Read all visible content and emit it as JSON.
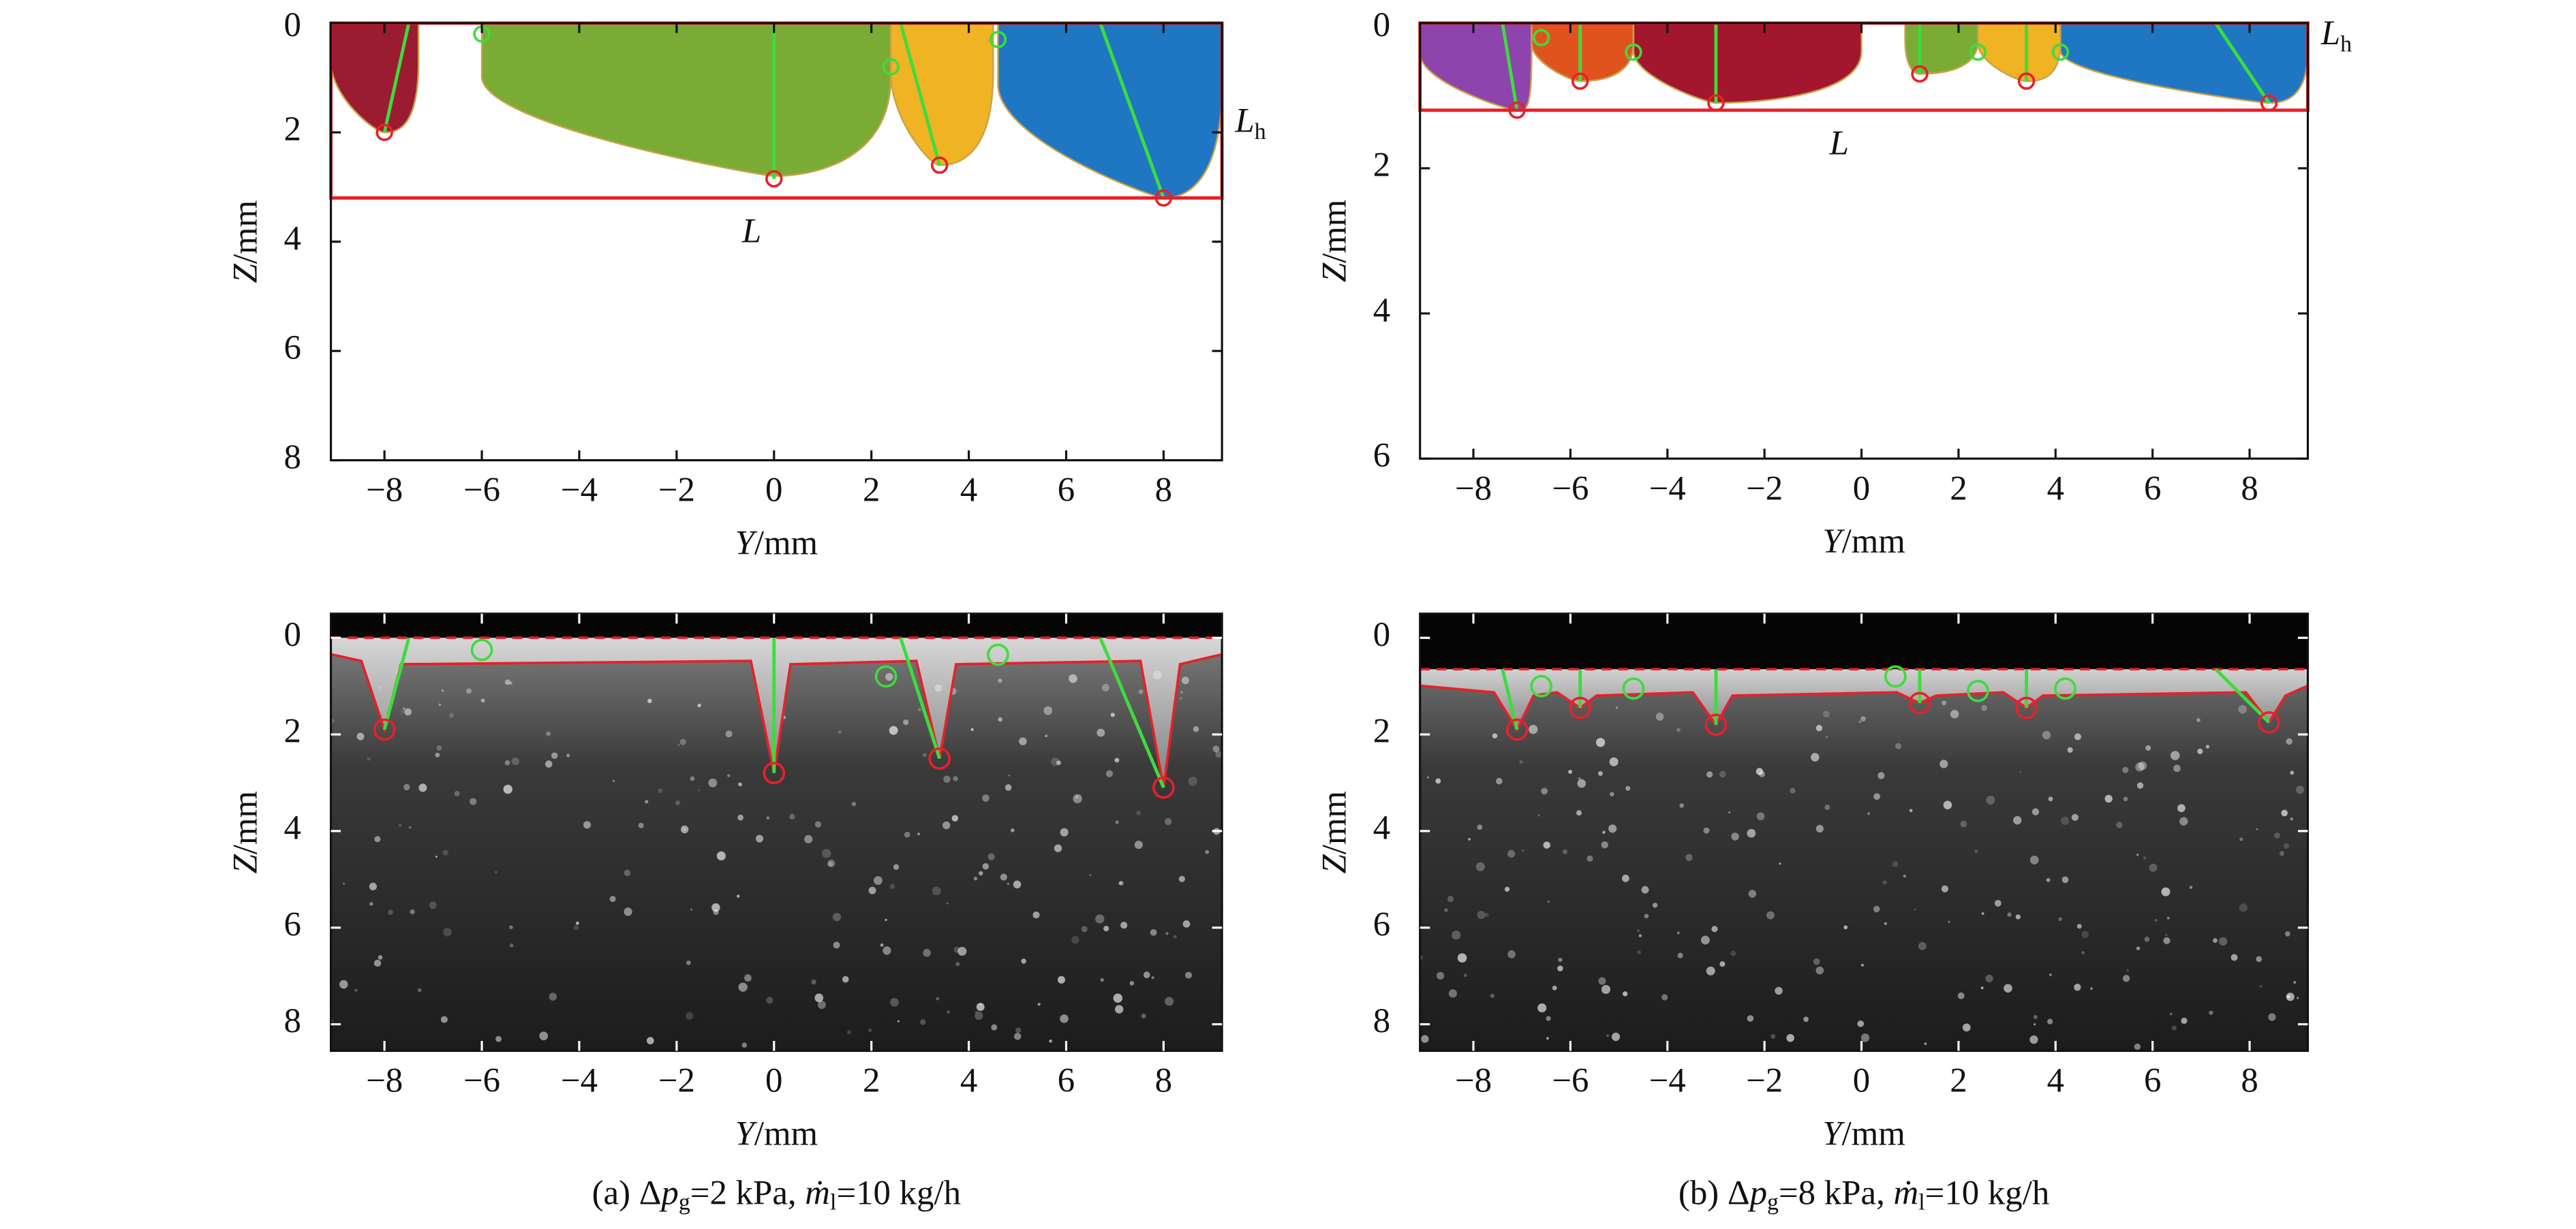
{
  "chart_data": [
    {
      "type": "segmentation",
      "x_label": {
        "symbol": "Y",
        "unit": "/mm"
      },
      "y_label": {
        "symbol": "Z",
        "unit": "/mm"
      },
      "xlim": [
        -9.1,
        9.2
      ],
      "ylim": [
        0,
        8
      ],
      "xticks": [
        {
          "value": -8,
          "label": "−8"
        },
        {
          "value": -6,
          "label": "−6"
        },
        {
          "value": -4,
          "label": "−4"
        },
        {
          "value": -2,
          "label": "−2"
        },
        0,
        2,
        4,
        6,
        8
      ],
      "yticks": [
        0,
        2,
        4,
        6,
        8
      ],
      "regions": [
        {
          "color": "#9b1b30",
          "from": -9.1,
          "to": -7.3,
          "depth": 2.0
        },
        {
          "color": "#7aab35",
          "from": -6.0,
          "to": 2.4,
          "depth": 2.8
        },
        {
          "color": "#f0b323",
          "from": 2.4,
          "to": 4.5,
          "depth": 2.6
        },
        {
          "color": "#1f77c4",
          "from": 4.6,
          "to": 9.2,
          "depth": 3.2
        }
      ],
      "box": {
        "color": "#e8202a",
        "height": 3.2
      },
      "annotations": {
        "L": "L",
        "Lh": {
          "symbol": "L",
          "sub": "h"
        }
      },
      "tips": {
        "Y": [
          -8,
          0,
          3.4,
          8
        ],
        "Z": [
          2.0,
          2.85,
          2.6,
          3.2
        ]
      },
      "line_tops": [
        -7.5,
        0,
        2.6,
        6.7
      ],
      "markers": {
        "Y": [
          -6,
          2.4,
          4.6
        ],
        "Z": [
          0.2,
          0.8,
          0.3
        ]
      }
    },
    {
      "type": "segmentation",
      "x_label": {
        "symbol": "Y",
        "unit": "/mm"
      },
      "y_label": {
        "symbol": "Z",
        "unit": "/mm"
      },
      "xlim": [
        -9.1,
        9.2
      ],
      "ylim": [
        0,
        6
      ],
      "xticks": [
        {
          "value": -8,
          "label": "−8"
        },
        {
          "value": -6,
          "label": "−6"
        },
        {
          "value": -4,
          "label": "−4"
        },
        {
          "value": -2,
          "label": "−2"
        },
        0,
        2,
        4,
        6,
        8
      ],
      "yticks": [
        0,
        2,
        4,
        6
      ],
      "regions": [
        {
          "color": "#8e44ad",
          "from": -9.1,
          "to": -6.8,
          "depth": 1.2
        },
        {
          "color": "#e0531f",
          "from": -6.8,
          "to": -4.7,
          "depth": 0.8
        },
        {
          "color": "#a3162d",
          "from": -4.7,
          "to": 0.0,
          "depth": 1.1
        },
        {
          "color": "#7aab35",
          "from": 0.9,
          "to": 2.4,
          "depth": 0.7
        },
        {
          "color": "#f0b323",
          "from": 2.4,
          "to": 4.1,
          "depth": 0.8
        },
        {
          "color": "#1f77c4",
          "from": 4.1,
          "to": 9.2,
          "depth": 1.1
        }
      ],
      "box": {
        "color": "#e8202a",
        "height": 1.2
      },
      "annotations": {
        "L": "L",
        "Lh": {
          "symbol": "L",
          "sub": "h"
        }
      },
      "tips": {
        "Y": [
          -7.1,
          -5.8,
          -3,
          1.2,
          3.4,
          8.4
        ],
        "Z": [
          1.2,
          0.8,
          1.1,
          0.7,
          0.8,
          1.1
        ]
      },
      "line_tops": [
        -7.4,
        -5.8,
        -3,
        1.2,
        3.4,
        7.3
      ],
      "markers": {
        "Y": [
          -6.6,
          -4.7,
          2.4,
          4.1
        ],
        "Z": [
          0.2,
          0.4,
          0.4,
          0.4
        ]
      }
    },
    {
      "type": "image",
      "x_label": {
        "symbol": "Y",
        "unit": "/mm"
      },
      "y_label": {
        "symbol": "Z",
        "unit": "/mm"
      },
      "xlim": [
        -9.1,
        9.2
      ],
      "ylim": [
        -0.5,
        8.55
      ],
      "xticks": [
        {
          "value": -8,
          "label": "−8"
        },
        {
          "value": -6,
          "label": "−6"
        },
        {
          "value": -4,
          "label": "−4"
        },
        {
          "value": -2,
          "label": "−2"
        },
        0,
        2,
        4,
        6,
        8
      ],
      "yticks": [
        0,
        2,
        4,
        6,
        8
      ],
      "surface": {
        "color": "#e8202a",
        "level": 0
      },
      "tips": {
        "Y": [
          -8,
          0,
          3.4,
          8
        ],
        "Z": [
          1.9,
          2.8,
          2.5,
          3.1
        ]
      },
      "line_tops": [
        -7.5,
        0,
        2.6,
        6.7
      ],
      "markers": {
        "Y": [
          -6,
          2.3,
          4.6
        ],
        "Z": [
          0.25,
          0.8,
          0.35
        ]
      },
      "caption": {
        "prefix": "(a) Δ",
        "var1": "p",
        "sub1": "g",
        "mid": "=2 kPa, ",
        "var2": "ṁ",
        "sub2": "l",
        "suffix": "=10 kg/h"
      }
    },
    {
      "type": "image",
      "x_label": {
        "symbol": "Y",
        "unit": "/mm"
      },
      "y_label": {
        "symbol": "Z",
        "unit": "/mm"
      },
      "xlim": [
        -9.1,
        9.2
      ],
      "ylim": [
        -0.5,
        8.55
      ],
      "xticks": [
        {
          "value": -8,
          "label": "−8"
        },
        {
          "value": -6,
          "label": "−6"
        },
        {
          "value": -4,
          "label": "−4"
        },
        {
          "value": -2,
          "label": "−2"
        },
        0,
        2,
        4,
        6,
        8
      ],
      "yticks": [
        0,
        2,
        4,
        6,
        8
      ],
      "surface": {
        "color": "#e8202a",
        "level": 0.65
      },
      "tips": {
        "Y": [
          -7.1,
          -5.8,
          -3,
          1.2,
          3.4,
          8.4
        ],
        "Z": [
          1.9,
          1.45,
          1.8,
          1.35,
          1.45,
          1.75
        ]
      },
      "line_tops": [
        -7.4,
        -5.8,
        -3,
        1.2,
        3.4,
        7.3
      ],
      "markers": {
        "Y": [
          -6.6,
          -4.7,
          0.7,
          2.4,
          4.2
        ],
        "Z": [
          1.0,
          1.05,
          0.8,
          1.1,
          1.05
        ]
      },
      "caption": {
        "prefix": "(b) Δ",
        "var1": "p",
        "sub1": "g",
        "mid": "=8 kPa, ",
        "var2": "ṁ",
        "sub2": "l",
        "suffix": "=10 kg/h"
      }
    }
  ]
}
